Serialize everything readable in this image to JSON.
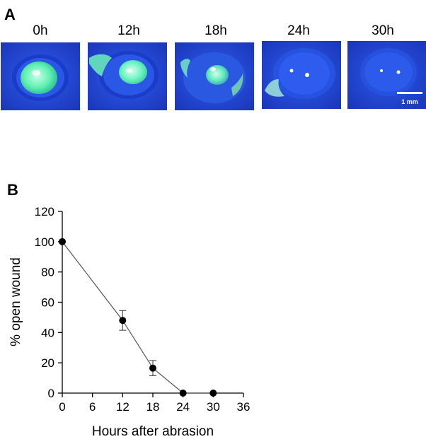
{
  "panel_a": {
    "letter": "A",
    "time_labels": [
      "0h",
      "12h",
      "18h",
      "24h",
      "30h"
    ],
    "scale_bar_label": "1 mm",
    "colors": {
      "background": "#2448d8",
      "stain": "#5cf0b0",
      "fur_dark": "#122a8a"
    }
  },
  "panel_b": {
    "letter": "B"
  },
  "chart_data": {
    "type": "line",
    "title": "",
    "xlabel": "Hours after abrasion",
    "ylabel": "% open wound",
    "xlim": [
      0,
      36
    ],
    "ylim": [
      0,
      120
    ],
    "xticks": [
      0,
      6,
      12,
      18,
      24,
      30,
      36
    ],
    "yticks": [
      0,
      20,
      40,
      60,
      80,
      100,
      120
    ],
    "grid": false,
    "series": [
      {
        "x": [
          0,
          12,
          18,
          24,
          30
        ],
        "y": [
          100,
          48,
          16.5,
          0,
          0
        ],
        "error": [
          0,
          6.5,
          5,
          0,
          0
        ]
      }
    ]
  }
}
